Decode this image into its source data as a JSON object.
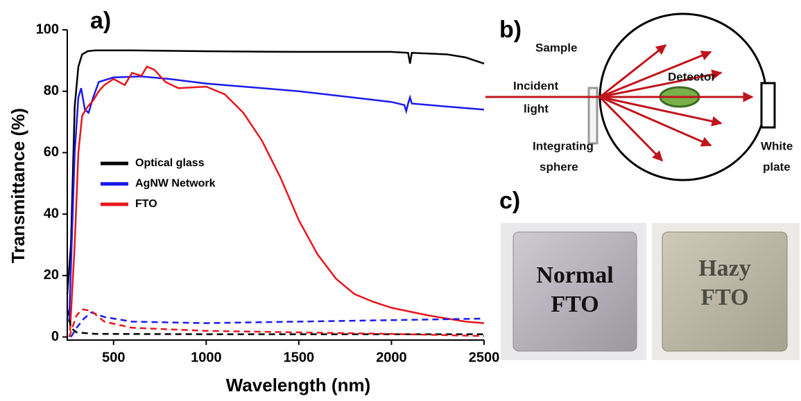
{
  "chart_data": {
    "type": "line",
    "x_label": "Wavelength (nm)",
    "y_label": "Transmittance (%)",
    "xlim": [
      250,
      2500
    ],
    "ylim": [
      -1,
      100
    ],
    "xticks": [
      500,
      1000,
      1500,
      2000,
      2500
    ],
    "yticks": [
      0,
      20,
      40,
      60,
      80,
      100
    ],
    "legend": "center left",
    "series": [
      {
        "name": "Optical glass",
        "color": "#000000",
        "dash": false,
        "x": [
          250,
          270,
          290,
          310,
          330,
          360,
          400,
          600,
          1000,
          1500,
          2000,
          2090,
          2100,
          2110,
          2300,
          2400,
          2500
        ],
        "values": [
          14,
          30,
          75,
          88,
          92,
          93,
          93.3,
          93.3,
          93,
          92.8,
          92.8,
          92.5,
          89,
          92.5,
          92,
          91,
          89
        ]
      },
      {
        "name": "AgNW Network",
        "color": "#1a1aee",
        "dash": false,
        "x": [
          260,
          290,
          310,
          325,
          345,
          365,
          390,
          420,
          500,
          650,
          800,
          1000,
          1500,
          2000,
          2070,
          2080,
          2090,
          2100,
          2110,
          2300,
          2500
        ],
        "values": [
          5,
          60,
          78,
          81,
          74,
          73,
          78,
          83,
          84.5,
          84.8,
          84,
          82.5,
          80,
          76.5,
          75.5,
          73.5,
          76,
          78,
          76,
          75,
          74
        ]
      },
      {
        "name": "FTO",
        "color": "#e8141c",
        "dash": false,
        "x": [
          265,
          290,
          310,
          330,
          360,
          390,
          420,
          450,
          500,
          560,
          600,
          650,
          680,
          720,
          780,
          850,
          1000,
          1100,
          1200,
          1300,
          1400,
          1500,
          1600,
          1700,
          1800,
          1900,
          2000,
          2200,
          2400,
          2500
        ],
        "values": [
          2,
          30,
          60,
          72,
          75,
          77,
          80,
          82,
          84,
          82,
          86,
          85,
          88,
          87,
          83,
          81,
          81.5,
          79,
          73,
          64,
          52,
          38,
          27,
          19,
          14,
          11.5,
          9.5,
          7,
          5,
          4.5
        ]
      },
      {
        "color": "#000000",
        "dash": true,
        "x": [
          250,
          270,
          300,
          400,
          1000,
          2500
        ],
        "values": [
          9,
          3,
          1.5,
          1,
          0.9,
          0.9
        ]
      },
      {
        "color": "#1a1aee",
        "dash": true,
        "x": [
          270,
          300,
          340,
          380,
          450,
          600,
          1000,
          1500,
          2000,
          2500
        ],
        "values": [
          0,
          3,
          6,
          8,
          6.5,
          5,
          4.5,
          5,
          5.5,
          6
        ]
      },
      {
        "color": "#e8141c",
        "dash": true,
        "x": [
          260,
          300,
          330,
          380,
          450,
          600,
          1000,
          1500,
          2000,
          2500
        ],
        "values": [
          0,
          7,
          9,
          8.5,
          5,
          3,
          2,
          1.5,
          1,
          0.3
        ]
      }
    ]
  },
  "panel_labels": [
    "a)",
    "b)",
    "c)"
  ],
  "diagram": {
    "sample": "Sample",
    "incident": [
      "Incident",
      "light"
    ],
    "detector": "Detector",
    "sphere": [
      "Integrating",
      "sphere"
    ],
    "plate": [
      "White",
      "plate"
    ]
  },
  "photos": [
    {
      "lines": [
        "Normal",
        "FTO"
      ]
    },
    {
      "lines": [
        "Hazy",
        "FTO"
      ]
    }
  ]
}
